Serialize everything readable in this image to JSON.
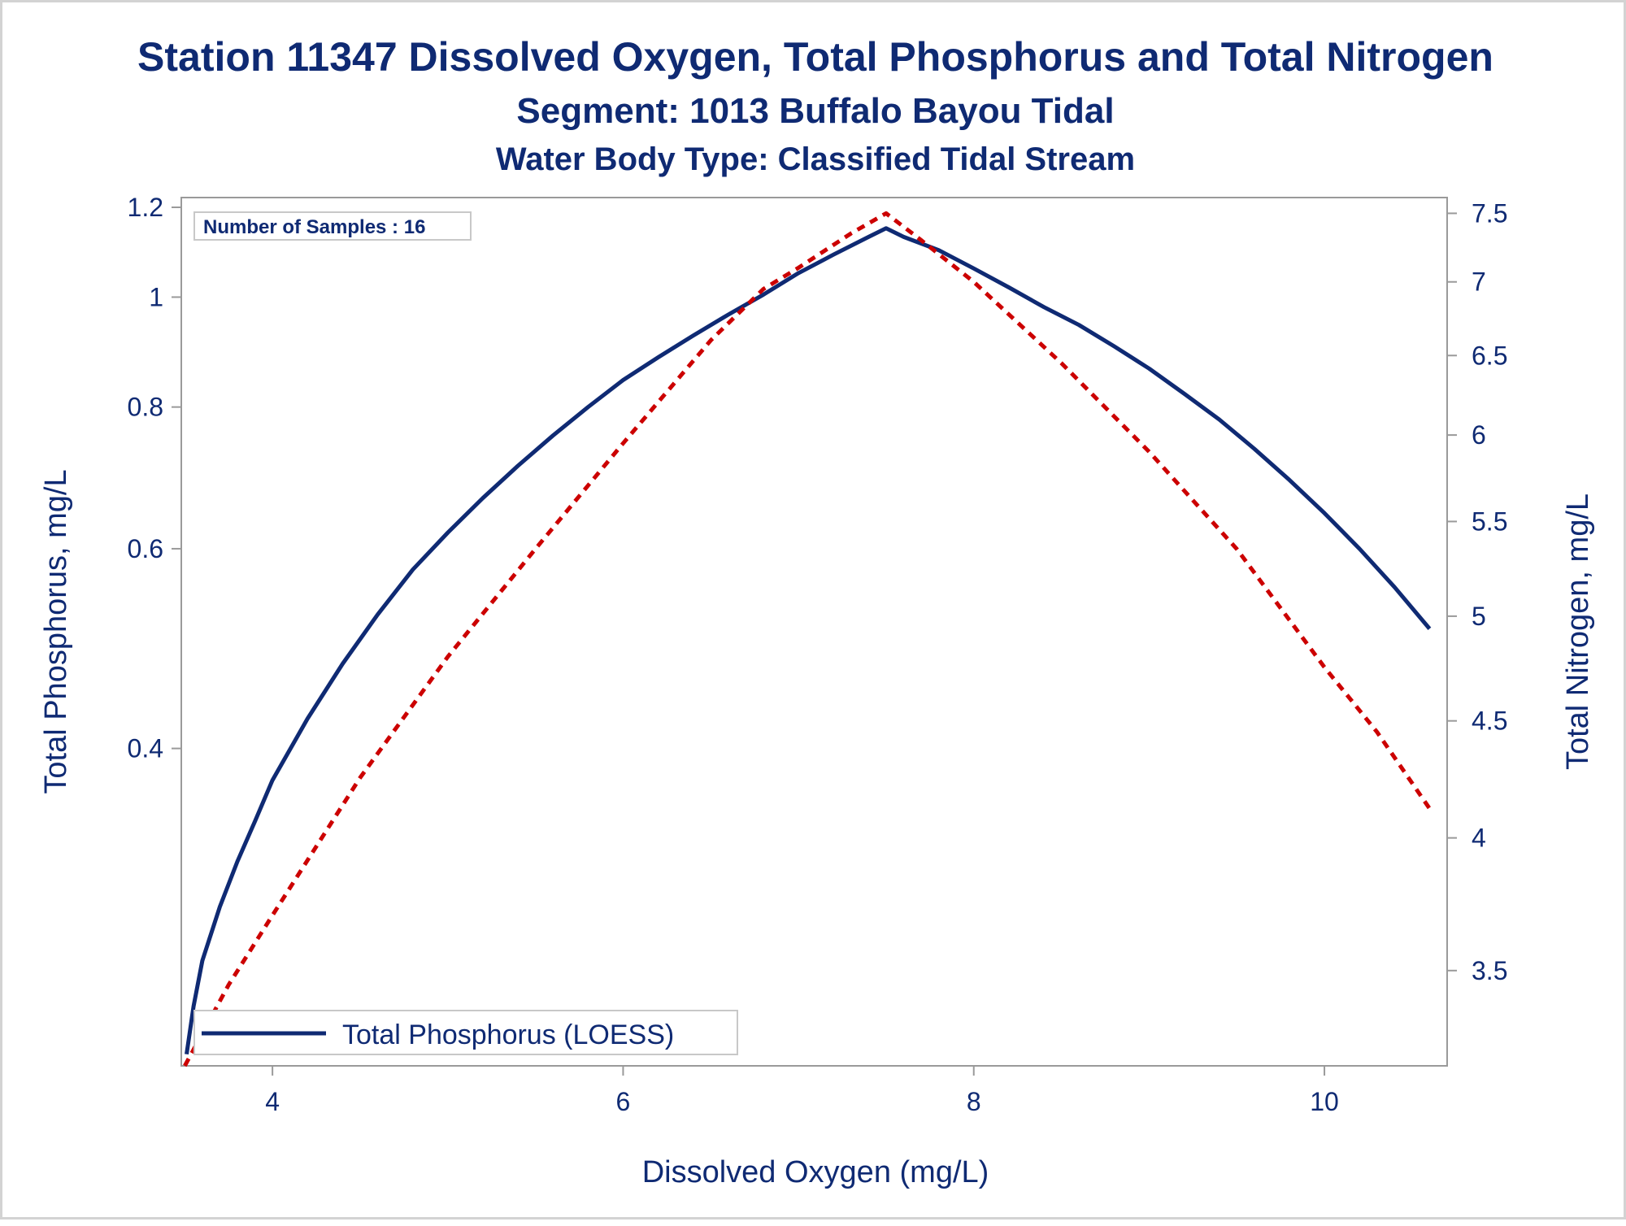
{
  "chart_data": {
    "type": "line",
    "title": "Station 11347  Dissolved Oxygen, Total Phosphorus and Total Nitrogen",
    "subtitle": "Segment: 1013  Buffalo Bayou Tidal",
    "subtitle2": "Water Body Type: Classified Tidal Stream",
    "xlabel": "Dissolved Oxygen (mg/L)",
    "ylabel": "Total Phosphorus, mg/L",
    "y2label": "Total Nitrogen, mg/L",
    "inset_label": "Number of Samples : 16",
    "legend": {
      "placement": "bottom-left",
      "label": "Total Phosphorus (LOESS)"
    },
    "xlim": [
      3.48,
      10.7
    ],
    "ylim": [
      0.21,
      1.224
    ],
    "y_scale": "log",
    "y2lim": [
      3.18,
      7.62
    ],
    "y2_scale": "log",
    "grid": false,
    "x_ticks": [
      "4",
      "6",
      "8",
      "10"
    ],
    "y_ticks": [
      "0.4",
      "0.6",
      "0.8",
      "1",
      "1.2"
    ],
    "y2_ticks": [
      "3.5",
      "4",
      "4.5",
      "5",
      "5.5",
      "6",
      "6.5",
      "7",
      "7.5"
    ],
    "colors": {
      "phosphorus": "#0f2a73",
      "nitrogen": "#cc0000",
      "frame": "#9a9a9a"
    },
    "series": [
      {
        "name": "Total Phosphorus (LOESS)",
        "axis": "left",
        "style": "solid",
        "x": [
          3.51,
          3.55,
          3.6,
          3.7,
          3.8,
          3.9,
          4.0,
          4.2,
          4.4,
          4.6,
          4.8,
          5.0,
          5.2,
          5.4,
          5.6,
          5.8,
          6.0,
          6.2,
          6.4,
          6.6,
          6.8,
          7.0,
          7.2,
          7.4,
          7.5,
          7.6,
          7.8,
          8.0,
          8.2,
          8.4,
          8.6,
          8.8,
          9.0,
          9.2,
          9.4,
          9.6,
          9.8,
          10.0,
          10.2,
          10.4,
          10.6
        ],
        "values": [
          0.215,
          0.237,
          0.26,
          0.29,
          0.318,
          0.345,
          0.375,
          0.425,
          0.475,
          0.525,
          0.575,
          0.62,
          0.665,
          0.71,
          0.755,
          0.8,
          0.845,
          0.885,
          0.925,
          0.965,
          1.005,
          1.05,
          1.09,
          1.13,
          1.15,
          1.13,
          1.1,
          1.06,
          1.02,
          0.98,
          0.945,
          0.905,
          0.865,
          0.822,
          0.78,
          0.735,
          0.69,
          0.645,
          0.6,
          0.555,
          0.51
        ]
      },
      {
        "name": "",
        "axis": "right",
        "style": "dashed",
        "x": [
          3.5,
          3.75,
          4.0,
          4.5,
          5.0,
          5.5,
          6.0,
          6.5,
          6.8,
          7.0,
          7.3,
          7.5,
          7.7,
          8.0,
          8.5,
          9.0,
          9.5,
          10.0,
          10.3,
          10.6
        ],
        "values": [
          3.18,
          3.45,
          3.7,
          4.25,
          4.8,
          5.35,
          5.95,
          6.6,
          6.95,
          7.1,
          7.35,
          7.5,
          7.3,
          7.0,
          6.45,
          5.9,
          5.35,
          4.75,
          4.45,
          4.12
        ]
      }
    ]
  }
}
